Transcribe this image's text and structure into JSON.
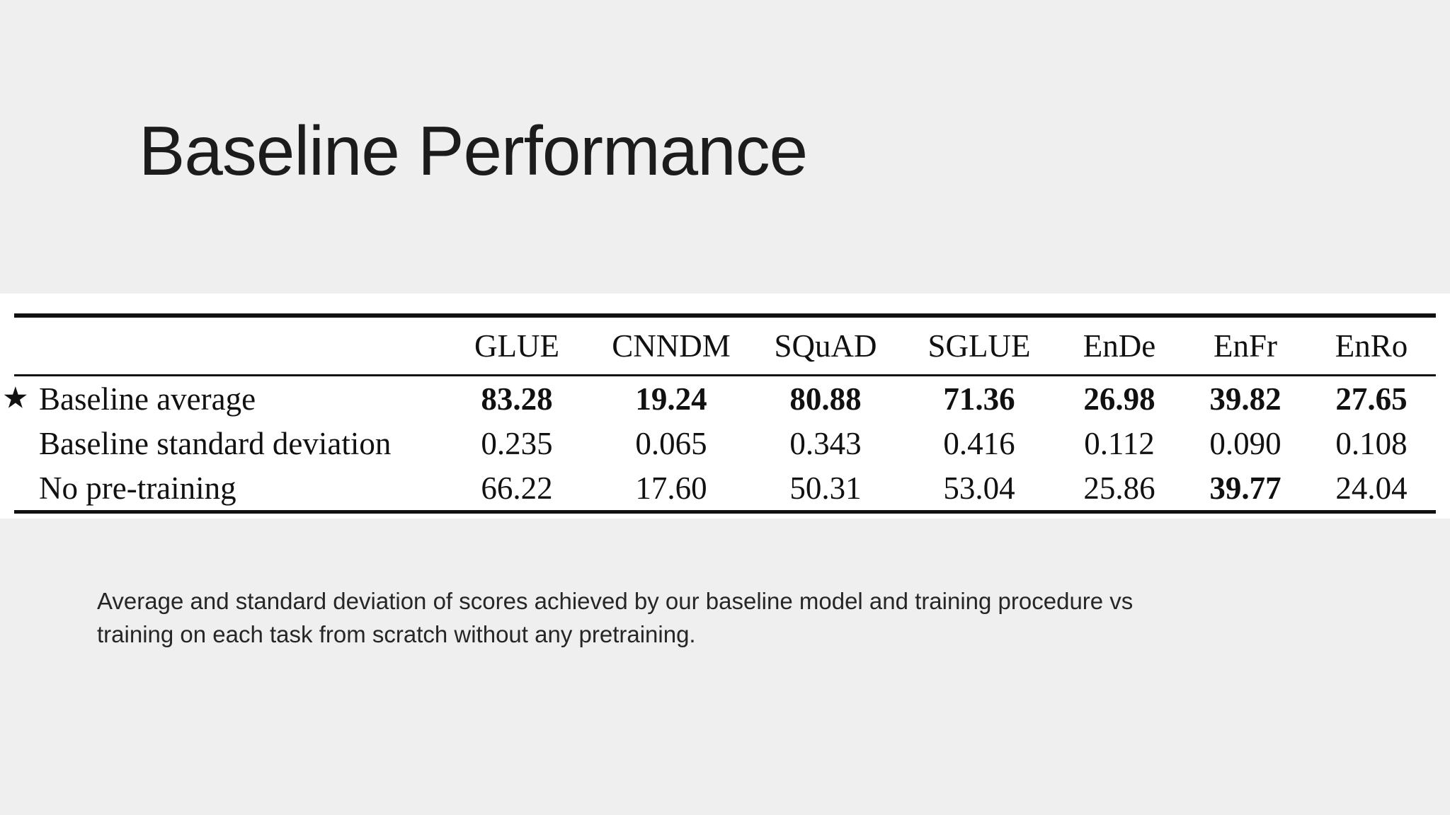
{
  "slide": {
    "title": "Baseline Performance",
    "caption_lines": [
      "Average and standard deviation of scores achieved by our baseline model and training procedure vs",
      "training on each task from scratch without any pretraining."
    ]
  },
  "icons": {
    "star_glyph": "★"
  },
  "colors": {
    "background": "#efefef",
    "panel": "#ffffff",
    "text": "#111111",
    "rule": "#111111"
  },
  "chart_data": {
    "type": "table",
    "columns": [
      "GLUE",
      "CNNDM",
      "SQuAD",
      "SGLUE",
      "EnDe",
      "EnFr",
      "EnRo"
    ],
    "rows": [
      {
        "label": "Baseline average",
        "starred": true,
        "bold_values": "all",
        "values": [
          "83.28",
          "19.24",
          "80.88",
          "71.36",
          "26.98",
          "39.82",
          "27.65"
        ]
      },
      {
        "label": "Baseline standard deviation",
        "starred": false,
        "bold_values": "none",
        "values": [
          "0.235",
          "0.065",
          "0.343",
          "0.416",
          "0.112",
          "0.090",
          "0.108"
        ]
      },
      {
        "label": "No pre-training",
        "starred": false,
        "bold_values": "EnFr",
        "values": [
          "66.22",
          "17.60",
          "50.31",
          "53.04",
          "25.86",
          "39.77",
          "24.04"
        ]
      }
    ]
  }
}
